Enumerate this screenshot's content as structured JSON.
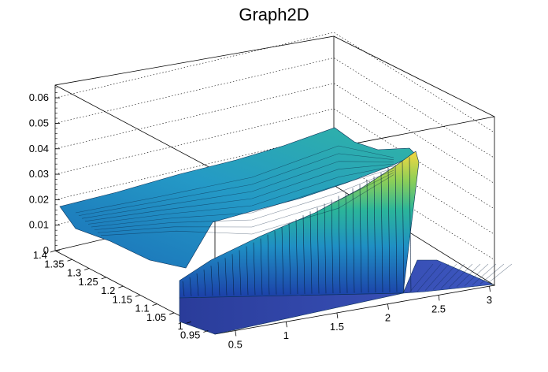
{
  "chart_data": {
    "type": "surface",
    "title": "Graph2D",
    "x_axis": {
      "range": [
        0.3,
        3.05
      ],
      "ticks": [
        "0.5",
        "1",
        "1.5",
        "2",
        "2.5",
        "3"
      ]
    },
    "y_axis": {
      "range": [
        0.93,
        1.4
      ],
      "ticks": [
        "0.95",
        "1",
        "1.05",
        "1.1",
        "1.15",
        "1.2",
        "1.25",
        "1.3",
        "1.35",
        "1.4"
      ]
    },
    "z_axis": {
      "range": [
        0,
        0.065
      ],
      "ticks": [
        "0",
        "0.01",
        "0.02",
        "0.03",
        "0.04",
        "0.05",
        "0.06"
      ]
    },
    "grid": true,
    "colormap": "viridis-like (dark blue → teal → green → yellow)",
    "surface_summary": {
      "back_plateau_z": 0.018,
      "front_slope_max_z": 0.04,
      "front_slope_max_x": 2.25,
      "drop_at_x": 2.25,
      "floor_z_beyond_drop": 0.0
    }
  }
}
